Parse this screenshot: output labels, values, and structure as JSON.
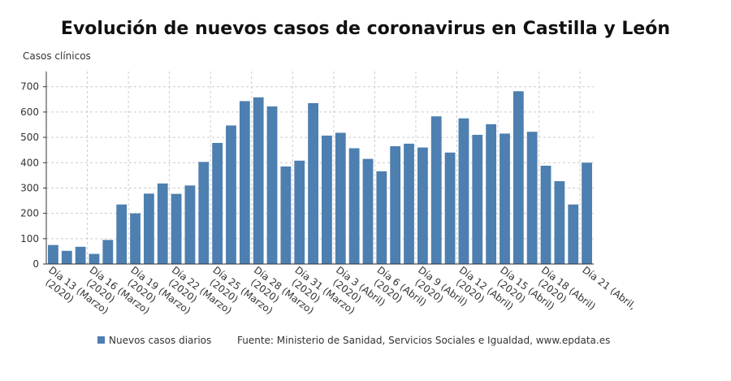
{
  "chart_data": {
    "type": "bar",
    "title": "Evolución de nuevos casos de coronavirus en Castilla y León",
    "y_label": "Casos clínicos",
    "source": "Fuente: Ministerio de Sanidad, Servicios Sociales e Igualdad, www.epdata.es",
    "categories": [
      "Día 13 (Marzo)\n(2020)",
      null,
      null,
      "Día 16 (Marzo)\n(2020)",
      null,
      null,
      "Día 19 (Marzo)\n(2020)",
      null,
      null,
      "Día 22 (Marzo)\n(2020)",
      null,
      null,
      "Día 25 (Marzo)\n(2020)",
      null,
      null,
      "Día 28 (Marzo)\n(2020)",
      null,
      null,
      "Día 31 (Marzo)\n(2020)",
      null,
      null,
      "Día 3 (Abril)\n(2020)",
      null,
      null,
      "Día 6 (Abril)\n(2020)",
      null,
      null,
      "Día 9 (Abril)\n(2020)",
      null,
      null,
      "Día 12 (Abril)\n(2020)",
      null,
      null,
      "Día 15 (Abril)\n(2020)",
      null,
      null,
      "Día 18 (Abril)\n(2020)",
      null,
      null,
      "Día 21 (Abril,"
    ],
    "series": [
      {
        "name": "Nuevos casos diarios",
        "color": "#4d7fb0",
        "values": [
          75,
          52,
          68,
          40,
          95,
          235,
          200,
          278,
          318,
          277,
          310,
          403,
          478,
          547,
          643,
          658,
          622,
          385,
          408,
          635,
          507,
          518,
          457,
          415,
          366,
          465,
          475,
          460,
          583,
          440,
          575,
          510,
          552,
          515,
          682,
          522,
          388,
          327,
          235,
          400
        ]
      }
    ],
    "ylim": [
      0,
      760
    ],
    "yticks": [
      0,
      100,
      200,
      300,
      400,
      500,
      600,
      700
    ],
    "grid": true
  }
}
